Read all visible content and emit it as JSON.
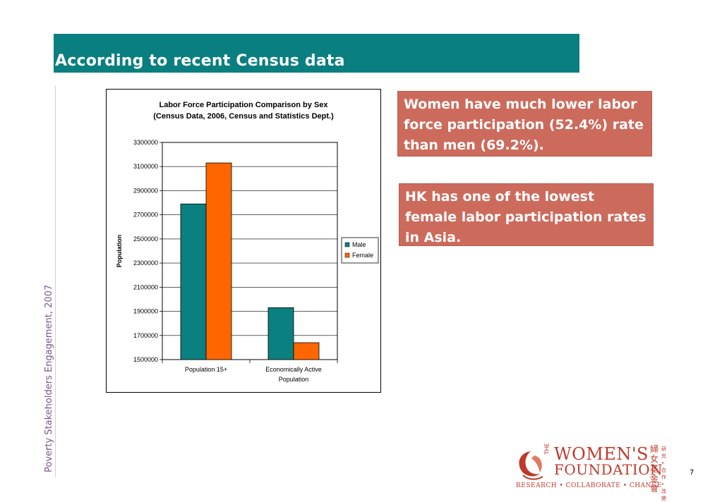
{
  "slide": {
    "title": "According to recent Census data",
    "side_text": "Poverty Stakeholders Engagement, 2007",
    "page_number": "7"
  },
  "callouts": [
    "Women have much lower labor force participation (52.4%) rate than men (69.2%).",
    "HK has one of the lowest female labor participation rates in Asia."
  ],
  "logo": {
    "the": "THE",
    "line1": "WOMEN'S",
    "line2": "FOUNDATION",
    "tagline": "RESEARCH • COLLABORATE • CHANGE",
    "cjk": "婦女基金會",
    "cjk_small": "研究•合作•改變"
  },
  "colors": {
    "title_bar": "#0a7f80",
    "callout": "#cc6b5c",
    "male": "#0b8080",
    "female": "#ff6600",
    "logo": "#c0392b"
  },
  "chart_data": {
    "type": "bar",
    "title": "Labor Force Participation Comparison by Sex",
    "subtitle": "(Census Data, 2006, Census and Statistics Dept.)",
    "ylabel": "Population",
    "xlabel": "",
    "ylim": [
      1500000,
      3300000
    ],
    "yticks": [
      "3300000",
      "3100000",
      "2900000",
      "2700000",
      "2500000",
      "2300000",
      "2100000",
      "1900000",
      "1700000",
      "1500000"
    ],
    "categories": [
      "Population 15+",
      "Economically Active Population"
    ],
    "series": [
      {
        "name": "Male",
        "values": [
          2790000,
          1930000
        ]
      },
      {
        "name": "Female",
        "values": [
          3130000,
          1640000
        ]
      }
    ],
    "legend": "right",
    "grid": true
  }
}
